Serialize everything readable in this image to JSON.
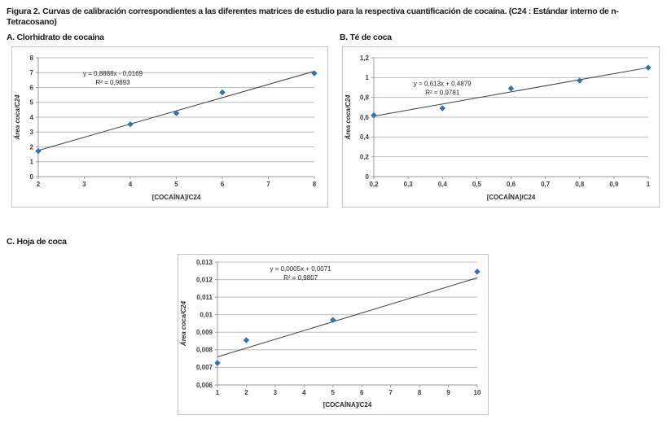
{
  "figure": {
    "label": "Figura 2.",
    "caption": "Curvas de calibración correspondientes a las diferentes matrices de estudio para la respectiva cuantificación de cocaína. (C24 : Estándar interno de n-Tetracosano)"
  },
  "colors": {
    "marker": "#2e75b5",
    "marker_stroke": "#24578a",
    "trendline": "#3f3f3f",
    "gridline": "#bcbcbc",
    "axis": "#9a9a9a",
    "tick_text": "#3c3c3c",
    "axis_title_text": "#2b2b2b",
    "annotation_text": "#222222",
    "panel_border": "#c3c3c3"
  },
  "chart_data": [
    {
      "type": "scatter",
      "panel": "A",
      "title": "A. Clorhidrato de cocaína",
      "x": [
        2,
        4,
        5,
        6,
        8
      ],
      "y": [
        1.72,
        3.52,
        4.27,
        5.67,
        6.95
      ],
      "trend": {
        "slope": 0.8888,
        "intercept": -0.0169
      },
      "equation": "y = 0,8888x - 0,0169",
      "r2_label": "R² = 0,9893",
      "xlabel": "[COCAÍNA]/C24",
      "ylabel": "Área coca/C24",
      "xlim": [
        2,
        8
      ],
      "ylim": [
        0,
        8
      ],
      "x_ticks": [
        2,
        3,
        4,
        5,
        6,
        7,
        8
      ],
      "x_tick_labels": [
        "2",
        "3",
        "4",
        "5",
        "6",
        "7",
        "8"
      ],
      "y_ticks": [
        0,
        1,
        2,
        3,
        4,
        5,
        6,
        7,
        8
      ],
      "y_tick_labels": [
        "0",
        "1",
        "2",
        "3",
        "4",
        "5",
        "6",
        "7",
        "8"
      ],
      "grid": "horizontal",
      "legend": "none",
      "annotation_anchor": {
        "fx": 0.27,
        "fy": 0.15
      }
    },
    {
      "type": "scatter",
      "panel": "B",
      "title": "B. Té de coca",
      "x": [
        0.2,
        0.4,
        0.6,
        0.8,
        1.0
      ],
      "y": [
        0.62,
        0.69,
        0.89,
        0.97,
        1.1
      ],
      "trend": {
        "slope": 0.613,
        "intercept": 0.4879
      },
      "equation": "y = 0,613x + 0,4879",
      "r2_label": "R² = 0,9781",
      "xlabel": "[COCAÍNA]/C24",
      "ylabel": "Área coca/C24",
      "xlim": [
        0.2,
        1.0
      ],
      "ylim": [
        0,
        1.2
      ],
      "x_ticks": [
        0.2,
        0.3,
        0.4,
        0.5,
        0.6,
        0.7,
        0.8,
        0.9,
        1.0
      ],
      "x_tick_labels": [
        "0,2",
        "0,3",
        "0,4",
        "0,5",
        "0,6",
        "0,7",
        "0,8",
        "0,9",
        "1"
      ],
      "y_ticks": [
        0,
        0.2,
        0.4,
        0.6,
        0.8,
        1.0,
        1.2
      ],
      "y_tick_labels": [
        "0",
        "0,2",
        "0,4",
        "0,6",
        "0,8",
        "1",
        "1,2"
      ],
      "grid": "horizontal",
      "legend": "none",
      "annotation_anchor": {
        "fx": 0.25,
        "fy": 0.236
      }
    },
    {
      "type": "scatter",
      "panel": "C",
      "title": "C. Hoja de coca",
      "x": [
        1,
        2,
        5,
        10
      ],
      "y": [
        0.00725,
        0.00855,
        0.0097,
        0.01245
      ],
      "trend": {
        "slope": 0.0005,
        "intercept": 0.0071
      },
      "equation": "y = 0,0005x + 0,0071",
      "r2_label": "R² = 0,9807",
      "xlabel": "[COCAÍNA]/C24",
      "ylabel": "Área coca/C24",
      "xlim": [
        1,
        10
      ],
      "ylim": [
        0.006,
        0.013
      ],
      "x_ticks": [
        1,
        2,
        3,
        4,
        5,
        6,
        7,
        8,
        9,
        10
      ],
      "x_tick_labels": [
        "1",
        "2",
        "3",
        "4",
        "5",
        "6",
        "7",
        "8",
        "9",
        "10"
      ],
      "y_ticks": [
        0.006,
        0.007,
        0.008,
        0.009,
        0.01,
        0.011,
        0.012,
        0.013
      ],
      "y_tick_labels": [
        "0,006",
        "0,007",
        "0,008",
        "0,009",
        "0,01",
        "0,011",
        "0,012",
        "0,013"
      ],
      "grid": "horizontal",
      "legend": "none",
      "annotation_anchor": {
        "fx": 0.32,
        "fy": 0.072
      }
    }
  ]
}
